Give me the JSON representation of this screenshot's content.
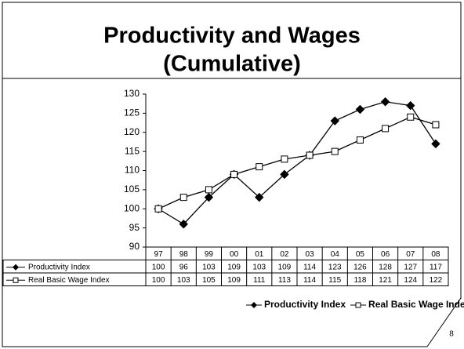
{
  "chart_data": {
    "type": "line",
    "title": "Productivity and Wages",
    "subtitle": "(Cumulative)",
    "categories": [
      "97",
      "98",
      "99",
      "00",
      "01",
      "02",
      "03",
      "04",
      "05",
      "06",
      "07",
      "08"
    ],
    "series": [
      {
        "name": "Productivity Index",
        "color": "#000000",
        "marker": "diamond",
        "values": [
          100,
          96,
          103,
          109,
          103,
          109,
          114,
          123,
          126,
          128,
          127,
          117
        ]
      },
      {
        "name": "Real Basic Wage Index",
        "color": "#000000",
        "marker": "square",
        "values": [
          100,
          103,
          105,
          109,
          111,
          113,
          114,
          115,
          118,
          121,
          124,
          122
        ]
      }
    ],
    "ylim": [
      90,
      130
    ],
    "yticks": [
      90,
      95,
      100,
      105,
      110,
      115,
      120,
      125,
      130
    ],
    "grid": false,
    "legend": "bottom",
    "slide_number": "8"
  }
}
